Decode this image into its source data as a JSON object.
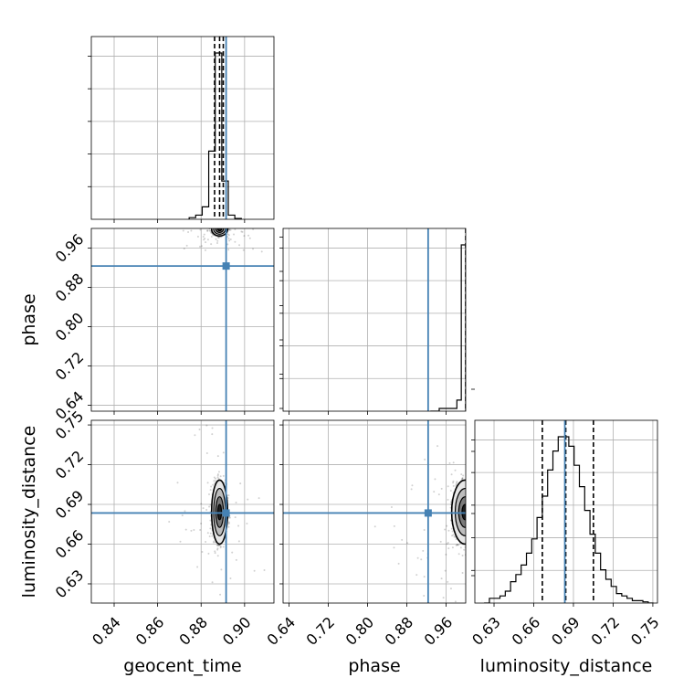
{
  "chart_data": {
    "type": "corner",
    "parameters": [
      "geocent_time",
      "phase",
      "luminosity_distance"
    ],
    "axis_labels": {
      "geocent_time": "geocent_time",
      "phase": "phase",
      "luminosity_distance": "luminosity_distance"
    },
    "ranges": {
      "geocent_time": [
        0.8295,
        0.9135
      ],
      "phase": [
        0.628,
        1.0
      ],
      "luminosity_distance": [
        0.6155,
        0.7535
      ]
    },
    "ticks": {
      "geocent_time": {
        "values": [
          0.84,
          0.86,
          0.88,
          0.9
        ],
        "labels": [
          "0.84",
          "0.86",
          "0.88",
          "0.90"
        ]
      },
      "phase": {
        "values": [
          0.64,
          0.72,
          0.8,
          0.88,
          0.96
        ],
        "labels": [
          "0.64",
          "0.72",
          "0.80",
          "0.88",
          "0.96"
        ]
      },
      "luminosity_distance": {
        "values": [
          0.63,
          0.66,
          0.69,
          0.72,
          0.75
        ],
        "labels": [
          "0.63",
          "0.66",
          "0.69",
          "0.72",
          "0.75"
        ]
      }
    },
    "truths": {
      "geocent_time": 0.8915,
      "phase": 0.9235,
      "luminosity_distance": 0.6835
    },
    "quantiles": {
      "geocent_time": [
        0.8862,
        0.8885,
        0.8902
      ],
      "phase": [
        1.0
      ],
      "luminosity_distance": [
        0.6665,
        0.6842,
        0.7051
      ]
    },
    "histograms": {
      "geocent_time": {
        "edges": [
          0.8745,
          0.8775,
          0.8805,
          0.8835,
          0.8865,
          0.8895,
          0.8925,
          0.8955,
          0.8985
        ],
        "counts": [
          0.02,
          0.05,
          0.15,
          0.82,
          2.0,
          0.46,
          0.05,
          0.01
        ]
      },
      "phase": {
        "edges": [
          0.928,
          0.946,
          0.964,
          0.982,
          0.991,
          1.0
        ],
        "counts": [
          0.0,
          0.04,
          0.04,
          0.16,
          2.4
        ]
      },
      "luminosity_distance": {
        "edges": [
          0.6225,
          0.6265,
          0.6305,
          0.6345,
          0.6385,
          0.6425,
          0.6465,
          0.6505,
          0.6545,
          0.6585,
          0.6625,
          0.6665,
          0.6705,
          0.6745,
          0.6785,
          0.6825,
          0.6865,
          0.6905,
          0.6945,
          0.6985,
          0.7025,
          0.7065,
          0.7105,
          0.7145,
          0.7185,
          0.7225,
          0.7265,
          0.7305,
          0.7345,
          0.7385,
          0.7425,
          0.7465,
          0.7505
        ],
        "counts": [
          0,
          0.02,
          0.02,
          0.03,
          0.05,
          0.09,
          0.12,
          0.16,
          0.21,
          0.27,
          0.36,
          0.45,
          0.56,
          0.64,
          0.7,
          0.7,
          0.66,
          0.58,
          0.49,
          0.39,
          0.29,
          0.21,
          0.14,
          0.1,
          0.07,
          0.04,
          0.03,
          0.02,
          0.01,
          0.01,
          0.005,
          0.0
        ]
      }
    },
    "grid": true
  }
}
